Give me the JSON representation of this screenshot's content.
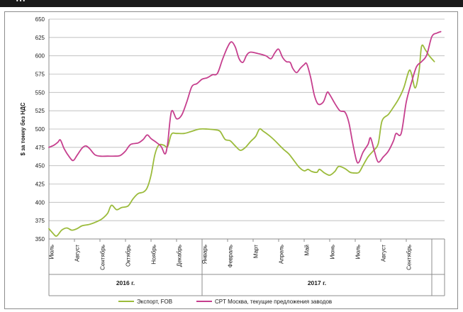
{
  "header_snippet": "…",
  "chart_data": {
    "type": "line",
    "title": "",
    "ylabel": "$ за тонну без НДС",
    "ylim": [
      350,
      650
    ],
    "yticks": [
      350,
      375,
      400,
      425,
      450,
      475,
      500,
      525,
      550,
      575,
      600,
      625,
      650
    ],
    "grid": true,
    "months": [
      "Июль",
      "Август",
      "Сентябрь",
      "Октябрь",
      "Ноябрь",
      "Декабрь",
      "Январь",
      "Февраль",
      "Март",
      "Апрель",
      "Май",
      "Июнь",
      "Июль",
      "Август",
      "Сентябрь"
    ],
    "years": [
      {
        "label": "2016 г.",
        "from": 0,
        "to": 6
      },
      {
        "label": "2017 г.",
        "from": 6,
        "to": 15
      }
    ],
    "x_units": "months since start of July 2016",
    "legend_position": "bottom",
    "series": [
      {
        "name": "Экспорт, FOB",
        "color": "#9bbb3b",
        "points": [
          [
            0.0,
            364
          ],
          [
            0.15,
            358
          ],
          [
            0.3,
            354
          ],
          [
            0.5,
            362
          ],
          [
            0.7,
            365
          ],
          [
            0.9,
            362
          ],
          [
            1.1,
            364
          ],
          [
            1.3,
            368
          ],
          [
            1.6,
            370
          ],
          [
            1.9,
            374
          ],
          [
            2.1,
            378
          ],
          [
            2.3,
            385
          ],
          [
            2.45,
            396
          ],
          [
            2.65,
            390
          ],
          [
            2.85,
            393
          ],
          [
            3.1,
            395
          ],
          [
            3.3,
            405
          ],
          [
            3.5,
            412
          ],
          [
            3.7,
            414
          ],
          [
            3.85,
            420
          ],
          [
            4.0,
            437
          ],
          [
            4.15,
            465
          ],
          [
            4.3,
            478
          ],
          [
            4.5,
            478
          ],
          [
            4.65,
            476
          ],
          [
            4.8,
            493
          ],
          [
            5.0,
            494
          ],
          [
            5.3,
            494
          ],
          [
            5.6,
            497
          ],
          [
            5.9,
            500
          ],
          [
            6.2,
            500
          ],
          [
            6.5,
            499
          ],
          [
            6.7,
            497
          ],
          [
            6.9,
            486
          ],
          [
            7.1,
            484
          ],
          [
            7.3,
            477
          ],
          [
            7.5,
            471
          ],
          [
            7.7,
            475
          ],
          [
            7.9,
            483
          ],
          [
            8.1,
            490
          ],
          [
            8.25,
            500
          ],
          [
            8.4,
            497
          ],
          [
            8.6,
            492
          ],
          [
            8.8,
            486
          ],
          [
            9.0,
            479
          ],
          [
            9.2,
            472
          ],
          [
            9.4,
            466
          ],
          [
            9.6,
            457
          ],
          [
            9.8,
            448
          ],
          [
            10.0,
            443
          ],
          [
            10.15,
            445
          ],
          [
            10.3,
            442
          ],
          [
            10.5,
            441
          ],
          [
            10.6,
            445
          ],
          [
            10.8,
            440
          ],
          [
            11.0,
            437
          ],
          [
            11.2,
            442
          ],
          [
            11.35,
            449
          ],
          [
            11.6,
            446
          ],
          [
            11.8,
            441
          ],
          [
            12.0,
            440
          ],
          [
            12.15,
            441
          ],
          [
            12.3,
            450
          ],
          [
            12.5,
            462
          ],
          [
            12.7,
            470
          ],
          [
            12.9,
            480
          ],
          [
            13.05,
            511
          ],
          [
            13.3,
            520
          ],
          [
            13.5,
            530
          ],
          [
            13.7,
            541
          ],
          [
            13.9,
            556
          ],
          [
            14.1,
            579
          ],
          [
            14.2,
            576
          ],
          [
            14.35,
            556
          ],
          [
            14.5,
            579
          ],
          [
            14.6,
            613
          ],
          [
            14.75,
            608
          ],
          [
            14.9,
            600
          ],
          [
            15.1,
            592
          ]
        ]
      },
      {
        "name": "CPT Москва, текущие предложения заводов",
        "color": "#c63f8e",
        "points": [
          [
            0.0,
            475
          ],
          [
            0.2,
            478
          ],
          [
            0.35,
            482
          ],
          [
            0.45,
            485
          ],
          [
            0.6,
            473
          ],
          [
            0.8,
            462
          ],
          [
            0.95,
            457
          ],
          [
            1.1,
            464
          ],
          [
            1.3,
            474
          ],
          [
            1.45,
            477
          ],
          [
            1.6,
            473
          ],
          [
            1.8,
            465
          ],
          [
            2.0,
            463
          ],
          [
            2.3,
            463
          ],
          [
            2.6,
            463
          ],
          [
            2.8,
            464
          ],
          [
            3.0,
            470
          ],
          [
            3.2,
            479
          ],
          [
            3.5,
            481
          ],
          [
            3.7,
            486
          ],
          [
            3.85,
            492
          ],
          [
            4.0,
            487
          ],
          [
            4.2,
            482
          ],
          [
            4.4,
            476
          ],
          [
            4.55,
            466
          ],
          [
            4.65,
            480
          ],
          [
            4.8,
            524
          ],
          [
            5.0,
            514
          ],
          [
            5.2,
            519
          ],
          [
            5.4,
            537
          ],
          [
            5.6,
            558
          ],
          [
            5.8,
            562
          ],
          [
            6.0,
            568
          ],
          [
            6.2,
            570
          ],
          [
            6.4,
            574
          ],
          [
            6.6,
            576
          ],
          [
            6.8,
            595
          ],
          [
            7.0,
            612
          ],
          [
            7.15,
            619
          ],
          [
            7.3,
            612
          ],
          [
            7.45,
            596
          ],
          [
            7.6,
            591
          ],
          [
            7.75,
            601
          ],
          [
            7.9,
            605
          ],
          [
            8.2,
            603
          ],
          [
            8.5,
            600
          ],
          [
            8.7,
            596
          ],
          [
            8.85,
            604
          ],
          [
            9.0,
            609
          ],
          [
            9.15,
            598
          ],
          [
            9.3,
            592
          ],
          [
            9.45,
            591
          ],
          [
            9.55,
            583
          ],
          [
            9.7,
            577
          ],
          [
            9.85,
            583
          ],
          [
            10.0,
            588
          ],
          [
            10.1,
            589
          ],
          [
            10.25,
            571
          ],
          [
            10.4,
            546
          ],
          [
            10.55,
            534
          ],
          [
            10.75,
            537
          ],
          [
            10.9,
            550
          ],
          [
            11.0,
            547
          ],
          [
            11.2,
            535
          ],
          [
            11.4,
            525
          ],
          [
            11.6,
            523
          ],
          [
            11.75,
            509
          ],
          [
            11.9,
            481
          ],
          [
            12.05,
            457
          ],
          [
            12.15,
            455
          ],
          [
            12.3,
            468
          ],
          [
            12.5,
            479
          ],
          [
            12.6,
            488
          ],
          [
            12.75,
            470
          ],
          [
            12.9,
            455
          ],
          [
            13.1,
            462
          ],
          [
            13.3,
            470
          ],
          [
            13.5,
            484
          ],
          [
            13.6,
            494
          ],
          [
            13.8,
            494
          ],
          [
            14.0,
            537
          ],
          [
            14.2,
            563
          ],
          [
            14.4,
            585
          ],
          [
            14.6,
            592
          ],
          [
            14.8,
            601
          ],
          [
            15.0,
            626
          ],
          [
            15.2,
            631
          ],
          [
            15.35,
            633
          ]
        ]
      }
    ]
  }
}
